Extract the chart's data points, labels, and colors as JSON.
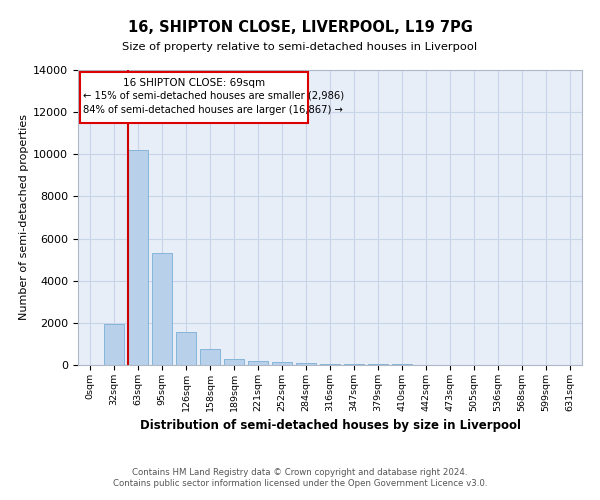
{
  "title": "16, SHIPTON CLOSE, LIVERPOOL, L19 7PG",
  "subtitle": "Size of property relative to semi-detached houses in Liverpool",
  "xlabel": "Distribution of semi-detached houses by size in Liverpool",
  "ylabel": "Number of semi-detached properties",
  "bar_labels": [
    "0sqm",
    "32sqm",
    "63sqm",
    "95sqm",
    "126sqm",
    "158sqm",
    "189sqm",
    "221sqm",
    "252sqm",
    "284sqm",
    "316sqm",
    "347sqm",
    "379sqm",
    "410sqm",
    "442sqm",
    "473sqm",
    "505sqm",
    "536sqm",
    "568sqm",
    "599sqm",
    "631sqm"
  ],
  "bar_values": [
    0,
    1950,
    10200,
    5300,
    1580,
    750,
    290,
    170,
    130,
    90,
    65,
    50,
    35,
    25,
    15,
    10,
    5,
    0,
    0,
    0,
    0
  ],
  "bar_color": "#b8d0ea",
  "bar_edge_color": "#7aafd4",
  "pct_smaller": 15,
  "count_smaller": "2,986",
  "pct_larger": 84,
  "count_larger": "16,867",
  "annotation_label": "16 SHIPTON CLOSE: 69sqm",
  "ylim": [
    0,
    14000
  ],
  "yticks": [
    0,
    2000,
    4000,
    6000,
    8000,
    10000,
    12000,
    14000
  ],
  "footer_line1": "Contains HM Land Registry data © Crown copyright and database right 2024.",
  "footer_line2": "Contains public sector information licensed under the Open Government Licence v3.0.",
  "bg_color": "#e8eef8",
  "grid_color": "#c8d4e8",
  "box_color": "#dd0000",
  "line_color": "#cc0000"
}
